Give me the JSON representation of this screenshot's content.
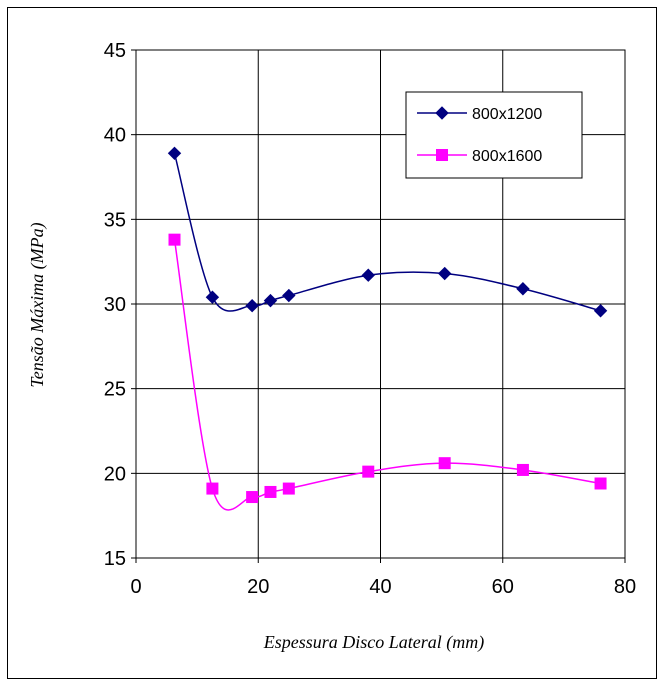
{
  "chart_data": {
    "type": "line",
    "title": "",
    "xlabel": "Espessura Disco Lateral (mm)",
    "ylabel": "Tensão Máxima (MPa)",
    "xlim": [
      0,
      80
    ],
    "ylim": [
      15,
      45
    ],
    "xticks": [
      0,
      20,
      40,
      60,
      80
    ],
    "yticks": [
      15,
      20,
      25,
      30,
      35,
      40,
      45
    ],
    "grid": true,
    "legend_position": "top-right",
    "smooth": true,
    "series": [
      {
        "name": "800x1200",
        "color": "#000080",
        "marker": "diamond",
        "x": [
          6.3,
          12.5,
          19,
          22,
          25,
          38,
          50.5,
          63.3,
          76
        ],
        "y": [
          38.9,
          30.4,
          29.9,
          30.2,
          30.5,
          31.7,
          31.8,
          30.9,
          29.6
        ]
      },
      {
        "name": "800x1600",
        "color": "#FF00FF",
        "marker": "square",
        "x": [
          6.3,
          12.5,
          19,
          22,
          25,
          38,
          50.5,
          63.3,
          76
        ],
        "y": [
          33.8,
          19.1,
          18.6,
          18.9,
          19.1,
          20.1,
          20.6,
          20.2,
          19.4
        ]
      }
    ]
  }
}
